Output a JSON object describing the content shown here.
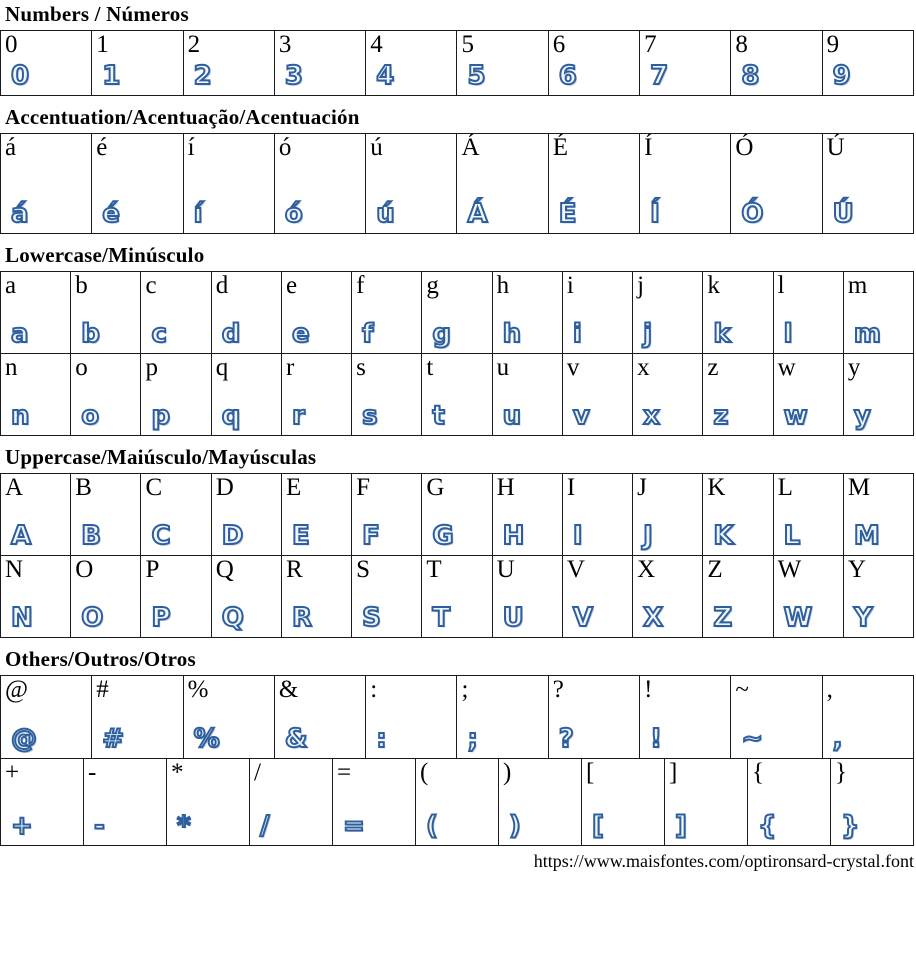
{
  "page": {
    "sections": [
      {
        "id": "numbers",
        "title": "Numbers / Números",
        "rows": [
          {
            "chars": [
              "0",
              "1",
              "2",
              "3",
              "4",
              "5",
              "6",
              "7",
              "8",
              "9"
            ]
          }
        ]
      },
      {
        "id": "accentuation",
        "title": "Accentuation/Acentuação/Acentuación",
        "rows": [
          {
            "chars": [
              "á",
              "é",
              "í",
              "ó",
              "ú",
              "Á",
              "É",
              "Í",
              "Ó",
              "Ú"
            ]
          }
        ]
      },
      {
        "id": "lowercase",
        "title": "Lowercase/Minúsculo",
        "rows": [
          {
            "chars": [
              "a",
              "b",
              "c",
              "d",
              "e",
              "f",
              "g",
              "h",
              "i",
              "j",
              "k",
              "l",
              "m"
            ]
          },
          {
            "chars": [
              "n",
              "o",
              "p",
              "q",
              "r",
              "s",
              "t",
              "u",
              "v",
              "x",
              "z",
              "w",
              "y"
            ]
          }
        ]
      },
      {
        "id": "uppercase",
        "title": "Uppercase/Maiúsculo/Mayúsculas",
        "rows": [
          {
            "chars": [
              "A",
              "B",
              "C",
              "D",
              "E",
              "F",
              "G",
              "H",
              "I",
              "J",
              "K",
              "L",
              "M"
            ]
          },
          {
            "chars": [
              "N",
              "O",
              "P",
              "Q",
              "R",
              "S",
              "T",
              "U",
              "V",
              "X",
              "Z",
              "W",
              "Y"
            ]
          }
        ]
      },
      {
        "id": "others",
        "title": "Others/Outros/Otros",
        "rows": [
          {
            "chars": [
              "@",
              "#",
              "%",
              "&",
              ":",
              ";",
              "?",
              "!",
              "~",
              ","
            ]
          },
          {
            "chars": [
              "+",
              "-",
              "*",
              "/",
              "=",
              "(",
              ")",
              "[",
              "]",
              "{",
              "}"
            ]
          }
        ]
      }
    ],
    "footer_url": "https://www.maisfontes.com/optironsard-crystal.font",
    "colors": {
      "glyph_blue": "#2d5f9e",
      "border": "#1a1a1a"
    }
  }
}
